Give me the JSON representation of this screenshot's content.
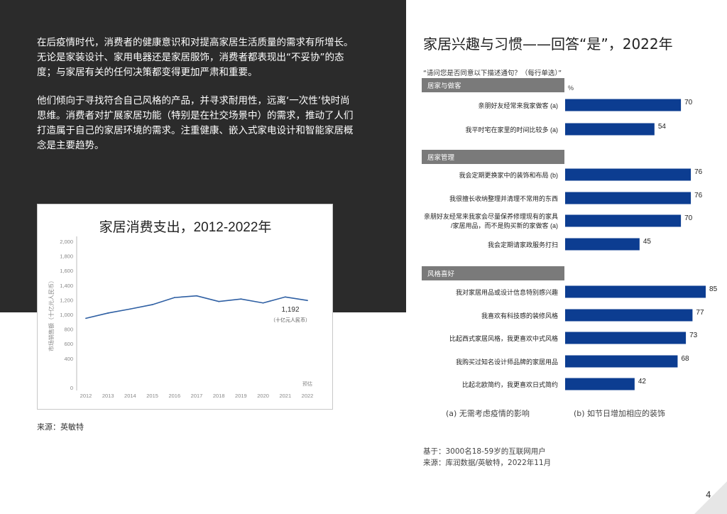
{
  "intro": {
    "p1": "在后疫情时代，消费者的健康意识和对提高家居生活质量的需求有所增长。无论是家装设计、家用电器还是家居服饰，消费者都表现出“不妥协”的态度；与家居有关的任何决策都变得更加严肃和重要。",
    "p2": "他们倾向于寻找符合自己风格的产品，并寻求耐用性，远离‘一次性’快时尚思维。消费者对扩展家居功能（特别是在社交场景中）的需求，推动了人们打造属于自己的家居环境的需求。注重健康、嵌入式家电设计和智能家居概念是主要趋势。"
  },
  "source_left": "来源：英敏特",
  "right": {
    "title": "家居兴趣与习惯——回答“是”，2022年",
    "question": "“请问您是否同意以下描述通句？（每行单选）”",
    "footnote_a": "(a) 无需考虑疫情的影响",
    "footnote_b": "(b) 如节日增加相应的装饰",
    "base": "基于：3000名18-59岁的互联网用户",
    "source": "来源：库润数据/英敏特，2022年11月"
  },
  "page_number": "4",
  "colors": {
    "dark": "#2b2b2b",
    "bar": "#0c3d91",
    "line": "#2e5fa3",
    "header": "#7a7a7a"
  },
  "chart_data": [
    {
      "type": "line",
      "title": "家居消费支出，2012-2022年",
      "ylabel": "市场销售额（十亿元人民币）",
      "xlabel": "",
      "x": [
        "2012",
        "2013",
        "2014",
        "2015",
        "2016",
        "2017",
        "2018",
        "2019",
        "2020",
        "2021",
        "2022"
      ],
      "values": [
        948,
        1020,
        1075,
        1135,
        1232,
        1255,
        1178,
        1212,
        1158,
        1240,
        1192
      ],
      "ylim": [
        0,
        2000
      ],
      "yticks": [
        "0",
        "400",
        "600",
        "800",
        "1,000",
        "1,200",
        "1,400",
        "1,600",
        "1,800",
        "2,000"
      ],
      "ytick_values": [
        0,
        400,
        600,
        800,
        1000,
        1200,
        1400,
        1600,
        1800,
        2000
      ],
      "annotation": {
        "value": "1,192",
        "unit": "（十亿元人民币）"
      },
      "estimate_label": "预估",
      "grid": false
    },
    {
      "type": "bar",
      "orientation": "horizontal",
      "unit_label": "%",
      "xlim": [
        0,
        100
      ],
      "groups": [
        {
          "name": "居家与做客",
          "items": [
            {
              "label": "亲朋好友经常来我家做客 (a)",
              "value": 70
            },
            {
              "label": "我平时宅在家里的时间比较多 (a)",
              "value": 54
            }
          ]
        },
        {
          "name": "居家管理",
          "items": [
            {
              "label": "我会定期更换家中的装饰和布局 (b)",
              "value": 76
            },
            {
              "label": "我很擅长收纳整理并清理不常用的东西",
              "value": 76
            },
            {
              "label": "亲朋好友经常来我家会尽量保养修理现有的家具/家居用品，而不是购买新的家做客 (a)",
              "value": 70
            },
            {
              "label": "我会定期请家政服务打扫",
              "value": 45
            }
          ]
        },
        {
          "name": "风格喜好",
          "items": [
            {
              "label": "我对家居用品或设计信息特别感兴趣",
              "value": 85
            },
            {
              "label": "我喜欢有科技感的装修风格",
              "value": 77
            },
            {
              "label": "比起西式家居风格，我更喜欢中式风格",
              "value": 73
            },
            {
              "label": "我购买过知名设计师品牌的家居用品",
              "value": 68
            },
            {
              "label": "比起北欧简约，我更喜欢日式简约",
              "value": 42
            }
          ]
        }
      ]
    }
  ]
}
